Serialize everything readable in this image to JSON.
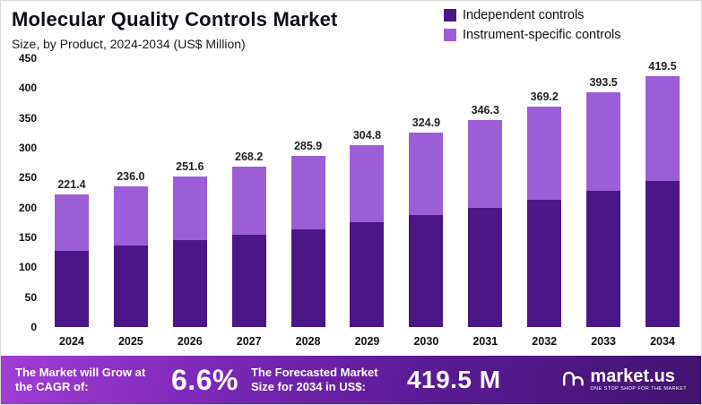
{
  "title": "Molecular Quality Controls Market",
  "subtitle": "Size, by Product, 2024-2034 (US$ Million)",
  "legend": [
    {
      "label": "Independent controls",
      "color": "#4b1787"
    },
    {
      "label": "Instrument-specific controls",
      "color": "#9c5ed6"
    }
  ],
  "chart_data": {
    "type": "bar",
    "stacked": true,
    "title": "Molecular Quality Controls Market",
    "subtitle": "Size, by Product, 2024-2034 (US$ Million)",
    "categories": [
      "2024",
      "2025",
      "2026",
      "2027",
      "2028",
      "2029",
      "2030",
      "2031",
      "2032",
      "2033",
      "2034"
    ],
    "series": [
      {
        "name": "Independent controls",
        "color": "#4b1787",
        "values": [
          128.0,
          136.0,
          145.0,
          154.0,
          164.0,
          176.0,
          187.0,
          200.0,
          213.0,
          228.0,
          245.0
        ]
      },
      {
        "name": "Instrument-specific controls",
        "color": "#9c5ed6",
        "values": [
          93.4,
          100.0,
          106.6,
          114.2,
          121.9,
          128.8,
          137.9,
          146.3,
          156.2,
          165.5,
          174.5
        ]
      }
    ],
    "totals": [
      "221.4",
      "236.0",
      "251.6",
      "268.2",
      "285.9",
      "304.8",
      "324.9",
      "346.3",
      "369.2",
      "393.5",
      "419.5"
    ],
    "ylim": [
      0,
      450
    ],
    "yticks": [
      0,
      50,
      100,
      150,
      200,
      250,
      300,
      350,
      400,
      450
    ],
    "legend_position": "top-right",
    "grid": false
  },
  "banner": {
    "cagr_label": "The Market will Grow at the CAGR of:",
    "cagr_value": "6.6%",
    "forecast_label": "The Forecasted Market Size for 2034 in US$:",
    "forecast_value": "419.5 M",
    "brand": "market.us",
    "brand_tagline": "ONE STOP SHOP FOR THE MARKET"
  }
}
